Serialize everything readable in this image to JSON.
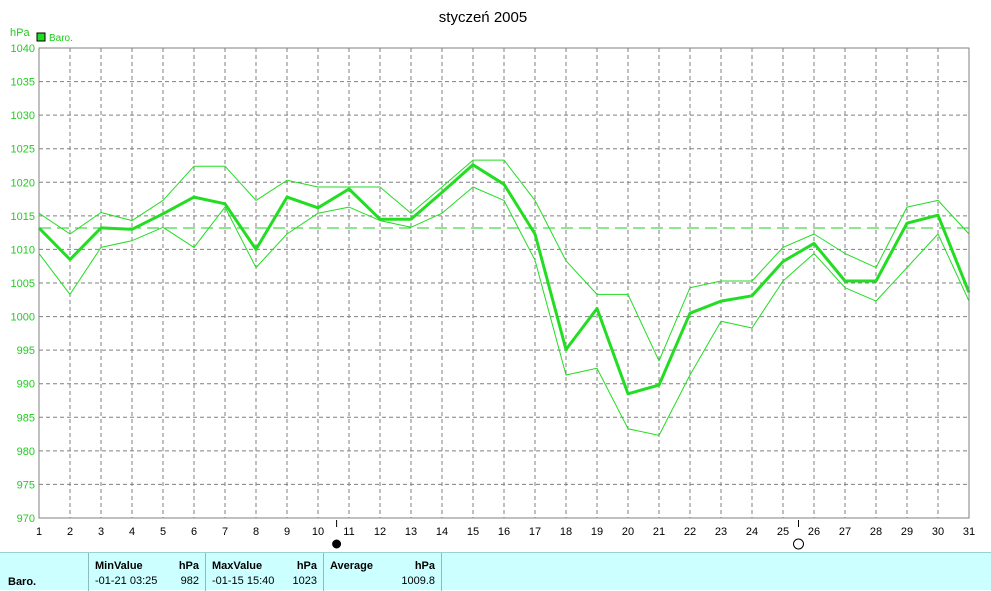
{
  "chart_data": {
    "type": "line",
    "title": "styczeń 2005",
    "ylabel": "hPa",
    "xlabel": "",
    "ylim": [
      970,
      1040
    ],
    "xlim": [
      1,
      31
    ],
    "y_ticks": [
      970,
      975,
      980,
      985,
      990,
      995,
      1000,
      1005,
      1010,
      1015,
      1020,
      1025,
      1030,
      1035,
      1040
    ],
    "x_ticks": [
      1,
      2,
      3,
      4,
      5,
      6,
      7,
      8,
      9,
      10,
      11,
      12,
      13,
      14,
      15,
      16,
      17,
      18,
      19,
      20,
      21,
      22,
      23,
      24,
      25,
      26,
      27,
      28,
      29,
      30,
      31
    ],
    "grid": true,
    "legend_placement": "top-left",
    "average_line": 1013.2,
    "x": [
      1,
      2,
      3,
      4,
      5,
      6,
      7,
      8,
      9,
      10,
      11,
      12,
      13,
      14,
      15,
      16,
      17,
      18,
      19,
      20,
      21,
      22,
      23,
      24,
      25,
      26,
      27,
      28,
      29,
      30,
      31
    ],
    "series": [
      {
        "name": "Baro.",
        "color": "#22dd22",
        "values": [
          1013.2,
          1008.5,
          1013.2,
          1013.0,
          1015.3,
          1017.8,
          1016.8,
          1010.0,
          1017.8,
          1016.2,
          1019.0,
          1014.5,
          1014.5,
          1018.5,
          1022.6,
          1019.7,
          1012.3,
          995.1,
          1001.2,
          988.5,
          989.8,
          1000.5,
          1002.3,
          1003.1,
          1008.2,
          1010.9,
          1005.3,
          1005.3,
          1013.9,
          1015.1,
          1003.6
        ]
      },
      {
        "color": "#22dd22",
        "values": [
          1015.4,
          1012.3,
          1015.5,
          1014.3,
          1017.3,
          1022.4,
          1022.4,
          1017.3,
          1020.3,
          1019.3,
          1019.3,
          1019.3,
          1015.4,
          1019.3,
          1023.3,
          1023.3,
          1017.3,
          1008.3,
          1003.3,
          1003.3,
          993.4,
          1004.3,
          1005.3,
          1005.3,
          1010.3,
          1012.3,
          1009.4,
          1007.3,
          1016.3,
          1017.3,
          1012.3
        ]
      },
      {
        "color": "#22dd22",
        "values": [
          1009.4,
          1003.3,
          1010.3,
          1011.3,
          1013.3,
          1010.3,
          1016.3,
          1007.3,
          1012.3,
          1015.4,
          1016.3,
          1014.3,
          1013.3,
          1015.4,
          1019.3,
          1017.3,
          1008.4,
          991.3,
          992.3,
          983.3,
          982.3,
          991.3,
          999.3,
          998.3,
          1005.3,
          1009.4,
          1004.3,
          1002.3,
          1007.3,
          1012.3,
          1002.3
        ]
      }
    ],
    "markers": [
      {
        "symbol": "new-moon",
        "day": 10.6
      },
      {
        "symbol": "full-moon",
        "day": 25.5
      }
    ]
  },
  "legend": {
    "label": "Baro."
  },
  "footer": {
    "row_label": "Baro.",
    "min": {
      "header": "MinValue",
      "unit": "hPa",
      "date": "-01-21  03:25",
      "value": "982"
    },
    "max": {
      "header": "MaxValue",
      "unit": "hPa",
      "date": "-01-15  15:40",
      "value": "1023"
    },
    "avg": {
      "header": "Average",
      "unit": "hPa",
      "value": "1009.8"
    }
  }
}
